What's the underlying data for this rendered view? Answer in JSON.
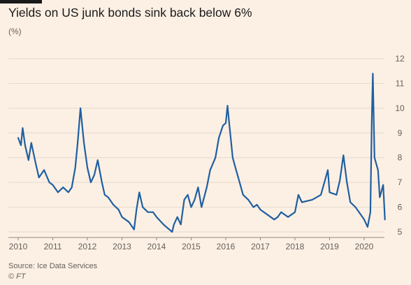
{
  "title": "Yields on US junk bonds sink back below 6%",
  "unit_label": "(%)",
  "source": "Source: Ice Data Services",
  "credit": "© FT",
  "colors": {
    "background": "#fcf0e4",
    "line": "#1f5fa1",
    "grid": "#e4d9ce",
    "text": "#66605c"
  },
  "chart_data": {
    "type": "line",
    "title": "Yields on US junk bonds sink back below 6%",
    "ylabel": "(%)",
    "xlim": [
      2010.0,
      2020.7
    ],
    "ylim": [
      5,
      12
    ],
    "y_axis_side": "right",
    "grid": true,
    "x_ticks": [
      2010,
      2011,
      2012,
      2013,
      2014,
      2015,
      2016,
      2017,
      2018,
      2019,
      2020
    ],
    "y_ticks": [
      5,
      6,
      7,
      8,
      9,
      10,
      11,
      12
    ],
    "series": [
      {
        "values_x": [
          2010.0,
          2010.08,
          2010.13,
          2010.2,
          2010.3,
          2010.38,
          2010.5,
          2010.6,
          2010.75,
          2010.9,
          2011.0,
          2011.15,
          2011.3,
          2011.45,
          2011.55,
          2011.65,
          2011.72,
          2011.8,
          2011.9,
          2012.0,
          2012.1,
          2012.2,
          2012.3,
          2012.42,
          2012.5,
          2012.6,
          2012.75,
          2012.9,
          2013.0,
          2013.2,
          2013.35,
          2013.42,
          2013.5,
          2013.6,
          2013.75,
          2013.9,
          2014.0,
          2014.2,
          2014.45,
          2014.5,
          2014.6,
          2014.7,
          2014.8,
          2014.9,
          2015.0,
          2015.1,
          2015.2,
          2015.3,
          2015.45,
          2015.55,
          2015.7,
          2015.8,
          2015.92,
          2016.0,
          2016.05,
          2016.1,
          2016.2,
          2016.3,
          2016.5,
          2016.65,
          2016.8,
          2016.9,
          2017.0,
          2017.2,
          2017.4,
          2017.5,
          2017.6,
          2017.8,
          2018.0,
          2018.1,
          2018.2,
          2018.5,
          2018.75,
          2018.85,
          2018.95,
          2019.0,
          2019.2,
          2019.3,
          2019.4,
          2019.5,
          2019.6,
          2019.75,
          2019.9,
          2020.0,
          2020.1,
          2020.18,
          2020.22,
          2020.25,
          2020.3,
          2020.4,
          2020.45,
          2020.55,
          2020.6
        ],
        "values": [
          8.8,
          8.5,
          9.2,
          8.5,
          7.9,
          8.6,
          7.8,
          7.2,
          7.5,
          7.0,
          6.9,
          6.6,
          6.8,
          6.6,
          6.8,
          7.6,
          8.6,
          10.0,
          8.6,
          7.6,
          7.0,
          7.3,
          7.9,
          7.0,
          6.5,
          6.4,
          6.1,
          5.9,
          5.6,
          5.4,
          5.1,
          5.9,
          6.6,
          6.0,
          5.8,
          5.8,
          5.6,
          5.3,
          5.0,
          5.3,
          5.6,
          5.3,
          6.3,
          6.5,
          6.0,
          6.3,
          6.8,
          6.0,
          6.8,
          7.5,
          8.0,
          8.8,
          9.3,
          9.4,
          10.1,
          9.4,
          8.0,
          7.5,
          6.5,
          6.3,
          6.0,
          6.1,
          5.9,
          5.7,
          5.5,
          5.6,
          5.8,
          5.6,
          5.8,
          6.5,
          6.2,
          6.3,
          6.5,
          7.0,
          7.5,
          6.6,
          6.5,
          7.1,
          8.1,
          7.0,
          6.2,
          6.0,
          5.7,
          5.5,
          5.2,
          5.8,
          9.5,
          11.4,
          8.0,
          7.5,
          6.4,
          6.9,
          5.5
        ]
      }
    ]
  }
}
